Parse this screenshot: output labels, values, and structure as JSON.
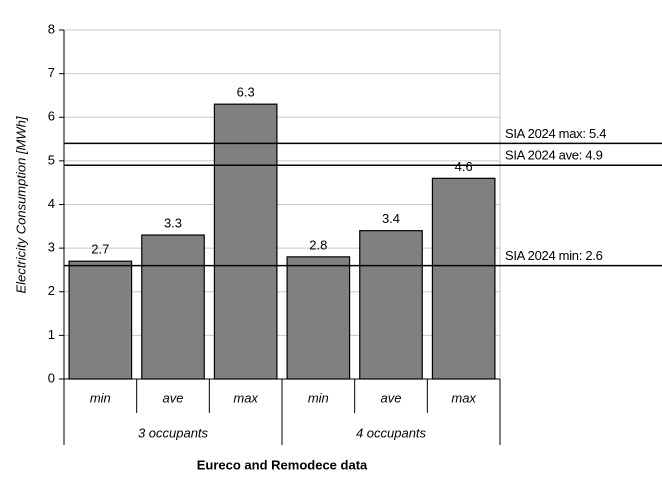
{
  "chart_data": {
    "type": "bar",
    "y_axis_label": "Electricity Consumption [MWh]",
    "x_axis_label": "Eureco and Remodece data",
    "groups": [
      {
        "label": "3 occupants",
        "categories": [
          "min",
          "ave",
          "max"
        ],
        "values": [
          2.7,
          3.3,
          6.3
        ]
      },
      {
        "label": "4 occupants",
        "categories": [
          "min",
          "ave",
          "max"
        ],
        "values": [
          2.8,
          3.4,
          4.6
        ]
      }
    ],
    "color": "#808080",
    "ylim": [
      0,
      8
    ],
    "yticks": [
      0,
      1,
      2,
      3,
      4,
      5,
      6,
      7,
      8
    ],
    "grid": true,
    "reference_lines": [
      {
        "value": 5.4,
        "label": "SIA 2024 max: 5.4"
      },
      {
        "value": 4.9,
        "label": "SIA 2024 ave: 4.9"
      },
      {
        "value": 2.6,
        "label": "SIA 2024 min: 2.6"
      }
    ]
  }
}
